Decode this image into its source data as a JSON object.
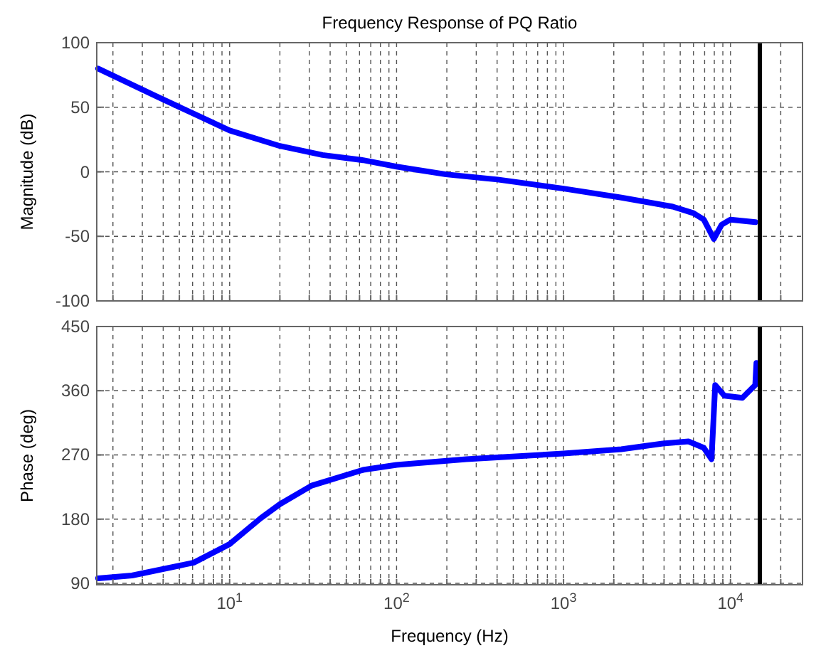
{
  "chart_data": [
    {
      "type": "line",
      "title": "Frequency Response of PQ Ratio",
      "ylabel": "Magnitude (dB)",
      "log": "x",
      "grid": true,
      "tick_labels": "y",
      "line_style": "solid",
      "marker": "none",
      "xlim": [
        1.6,
        27000
      ],
      "xticks": [
        {
          "value": 2,
          "label": null
        },
        {
          "value": 3,
          "label": null
        },
        {
          "value": 4,
          "label": null
        },
        {
          "value": 5,
          "label": null
        },
        {
          "value": 6,
          "label": null
        },
        {
          "value": 7,
          "label": null
        },
        {
          "value": 8,
          "label": null
        },
        {
          "value": 9,
          "label": null
        },
        {
          "value": 10,
          "label": null
        },
        {
          "value": 20,
          "label": null
        },
        {
          "value": 30,
          "label": null
        },
        {
          "value": 40,
          "label": null
        },
        {
          "value": 50,
          "label": null
        },
        {
          "value": 60,
          "label": null
        },
        {
          "value": 70,
          "label": null
        },
        {
          "value": 80,
          "label": null
        },
        {
          "value": 90,
          "label": null
        },
        {
          "value": 100,
          "label": null
        },
        {
          "value": 200,
          "label": null
        },
        {
          "value": 300,
          "label": null
        },
        {
          "value": 400,
          "label": null
        },
        {
          "value": 500,
          "label": null
        },
        {
          "value": 600,
          "label": null
        },
        {
          "value": 700,
          "label": null
        },
        {
          "value": 800,
          "label": null
        },
        {
          "value": 900,
          "label": null
        },
        {
          "value": 1000,
          "label": null
        },
        {
          "value": 2000,
          "label": null
        },
        {
          "value": 3000,
          "label": null
        },
        {
          "value": 4000,
          "label": null
        },
        {
          "value": 5000,
          "label": null
        },
        {
          "value": 6000,
          "label": null
        },
        {
          "value": 7000,
          "label": null
        },
        {
          "value": 8000,
          "label": null
        },
        {
          "value": 9000,
          "label": null
        },
        {
          "value": 10000,
          "label": null
        },
        {
          "value": 20000,
          "label": null
        }
      ],
      "ylim": [
        -100,
        100
      ],
      "yticks": [
        -100,
        -50,
        0,
        50,
        100
      ],
      "ref_lines": [
        {
          "axis": "x",
          "value": 15000,
          "color": "#000000"
        }
      ],
      "series": [
        {
          "color": "#0000ff",
          "x": [
            1.63,
            3.7,
            6.1,
            10,
            20,
            36,
            63,
            100,
            198,
            403,
            1000,
            2220,
            4510,
            6000,
            6920,
            7950,
            8850,
            10000,
            14070
          ],
          "values": [
            80,
            58,
            45,
            32,
            20,
            13,
            9,
            4,
            -2,
            -6,
            -13,
            -20,
            -27,
            -32,
            -37,
            -52,
            -41,
            -37,
            -39
          ]
        }
      ]
    },
    {
      "type": "line",
      "ylabel": "Phase (deg)",
      "xlabel": "Frequency (Hz)",
      "log": "x",
      "grid": true,
      "line_style": "solid",
      "marker": "none",
      "xlim": [
        1.6,
        27000
      ],
      "xticks": [
        {
          "value": 2,
          "label": null
        },
        {
          "value": 3,
          "label": null
        },
        {
          "value": 4,
          "label": null
        },
        {
          "value": 5,
          "label": null
        },
        {
          "value": 6,
          "label": null
        },
        {
          "value": 7,
          "label": null
        },
        {
          "value": 8,
          "label": null
        },
        {
          "value": 9,
          "label": null
        },
        {
          "value": 10,
          "label": "10$^{1}$"
        },
        {
          "value": 20,
          "label": null
        },
        {
          "value": 30,
          "label": null
        },
        {
          "value": 40,
          "label": null
        },
        {
          "value": 50,
          "label": null
        },
        {
          "value": 60,
          "label": null
        },
        {
          "value": 70,
          "label": null
        },
        {
          "value": 80,
          "label": null
        },
        {
          "value": 90,
          "label": null
        },
        {
          "value": 100,
          "label": "10$^{2}$"
        },
        {
          "value": 200,
          "label": null
        },
        {
          "value": 300,
          "label": null
        },
        {
          "value": 400,
          "label": null
        },
        {
          "value": 500,
          "label": null
        },
        {
          "value": 600,
          "label": null
        },
        {
          "value": 700,
          "label": null
        },
        {
          "value": 800,
          "label": null
        },
        {
          "value": 900,
          "label": null
        },
        {
          "value": 1000,
          "label": "10$^{3}$"
        },
        {
          "value": 2000,
          "label": null
        },
        {
          "value": 3000,
          "label": null
        },
        {
          "value": 4000,
          "label": null
        },
        {
          "value": 5000,
          "label": null
        },
        {
          "value": 6000,
          "label": null
        },
        {
          "value": 7000,
          "label": null
        },
        {
          "value": 8000,
          "label": null
        },
        {
          "value": 9000,
          "label": null
        },
        {
          "value": 10000,
          "label": "10$^{4}$"
        },
        {
          "value": 20000,
          "label": null
        }
      ],
      "ylim": [
        88,
        450
      ],
      "yticks": [
        90,
        180,
        270,
        360,
        450
      ],
      "ref_lines": [
        {
          "axis": "x",
          "value": 15000,
          "color": "#000000"
        }
      ],
      "series": [
        {
          "color": "#0000ff",
          "x": [
            1.63,
            2.6,
            6.1,
            10,
            15.3,
            20,
            31,
            63,
            100,
            262,
            1000,
            2220,
            3930,
            5600,
            6920,
            7700,
            8100,
            9190,
            11780,
            14070,
            14300
          ],
          "values": [
            97,
            101,
            119,
            145,
            181,
            201,
            227,
            249,
            256,
            264,
            272,
            278,
            286,
            289,
            280,
            264,
            368,
            353,
            350,
            368,
            399
          ]
        }
      ]
    }
  ]
}
